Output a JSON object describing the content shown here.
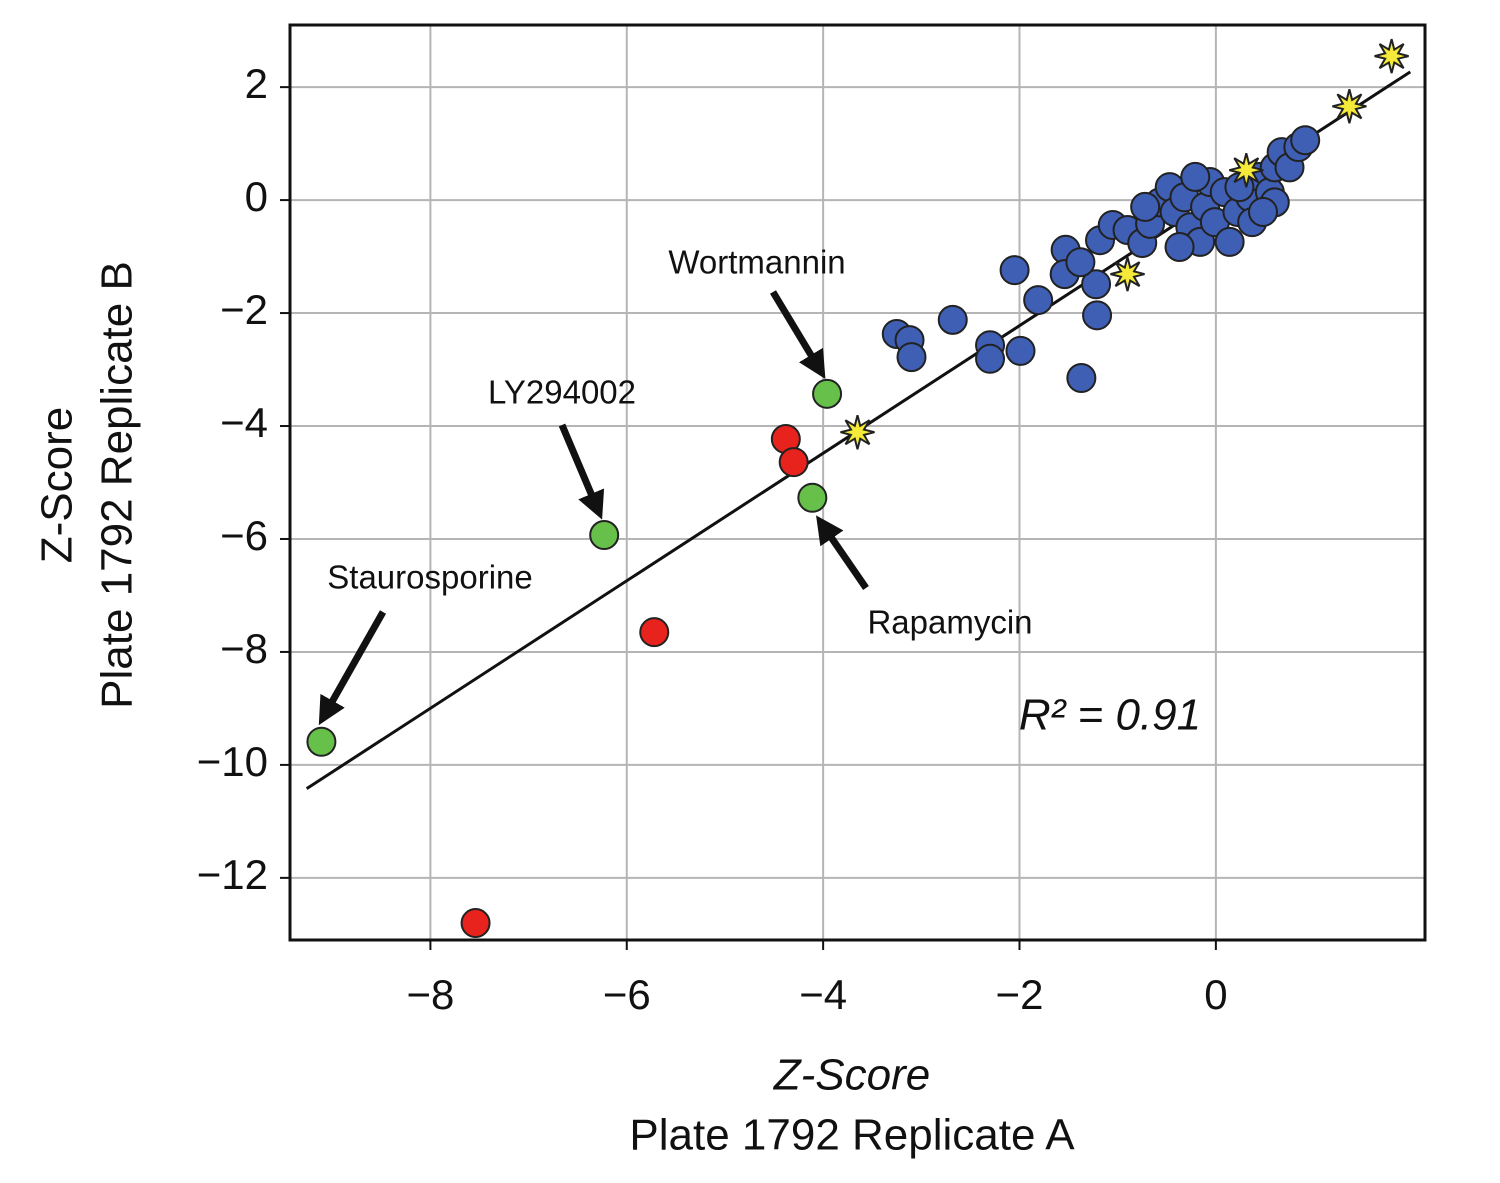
{
  "chart_data": {
    "type": "scatter",
    "xlabel": [
      "Z-Score",
      "Plate 1792 Replicate A"
    ],
    "ylabel": [
      "Z-Score",
      "Plate 1792 Replicate B"
    ],
    "xlim": [
      -9.43,
      2.13
    ],
    "ylim": [
      -13.1,
      3.1
    ],
    "xticks": [
      {
        "value": -8,
        "label": "−8"
      },
      {
        "value": -6,
        "label": "−6"
      },
      {
        "value": -4,
        "label": "−4"
      },
      {
        "value": -2,
        "label": "−2"
      },
      0
    ],
    "yticks": [
      2,
      0,
      {
        "value": -2,
        "label": "−2"
      },
      {
        "value": -4,
        "label": "−4"
      },
      {
        "value": -6,
        "label": "−6"
      },
      {
        "value": -8,
        "label": "−8"
      },
      {
        "value": -10,
        "label": "−10"
      },
      {
        "value": -12,
        "label": "−12"
      }
    ],
    "grid": true,
    "series": [
      {
        "color": "#3f5fb5",
        "marker": "circle",
        "x": [
          -2.05,
          -2.68,
          -3.25,
          -3.12,
          -3.1,
          -2.3,
          -2.3,
          -1.99,
          -1.81,
          -1.37,
          -1.21,
          -1.22,
          -1.53,
          -1.54,
          -1.38,
          -1.18,
          -1.05,
          -0.9,
          -0.75,
          -0.67,
          -0.57,
          -0.47,
          -0.42,
          -0.32,
          -0.26,
          -0.16,
          -0.11,
          -0.06,
          -0.01,
          0.09,
          0.14,
          0.22,
          0.35,
          0.37,
          0.45,
          0.55,
          0.6,
          0.67,
          0.75,
          0.84,
          0.91,
          0.6,
          -0.72,
          -0.37,
          -0.21,
          0.24,
          0.48
        ],
        "y": [
          -1.24,
          -2.12,
          -2.37,
          -2.48,
          -2.78,
          -2.57,
          -2.81,
          -2.67,
          -1.77,
          -3.15,
          -2.04,
          -1.49,
          -0.88,
          -1.31,
          -1.1,
          -0.71,
          -0.44,
          -0.53,
          -0.76,
          -0.42,
          -0.04,
          0.23,
          -0.21,
          0.05,
          -0.48,
          -0.74,
          -0.12,
          0.32,
          -0.39,
          0.14,
          -0.74,
          -0.21,
          0.05,
          -0.39,
          0.41,
          0.14,
          0.58,
          0.85,
          0.58,
          0.94,
          1.06,
          -0.04,
          -0.12,
          -0.83,
          0.41,
          0.23,
          -0.21
        ]
      },
      {
        "color": "#e8221c",
        "marker": "circle",
        "x": [
          -4.38,
          -4.3,
          -5.72,
          -7.54
        ],
        "y": [
          -4.23,
          -4.64,
          -7.65,
          -12.8
        ]
      },
      {
        "color": "#66c04a",
        "marker": "circle",
        "x": [
          -3.96,
          -6.23,
          -4.11,
          -9.11
        ],
        "y": [
          -3.43,
          -5.93,
          -5.27,
          -9.59
        ]
      },
      {
        "color": "#f5ea3a",
        "marker": "star",
        "x": [
          1.79,
          1.36,
          0.31,
          -0.9,
          -3.65
        ],
        "y": [
          2.55,
          1.66,
          0.53,
          -1.31,
          -4.11
        ]
      }
    ],
    "fit_line": {
      "x": [
        -9.26,
        1.98
      ],
      "y": [
        -10.42,
        2.27
      ]
    },
    "annotations": [
      "Wortmannin",
      "LY294002",
      "Staurosporine",
      "Rapamycin",
      "R² = 0.91"
    ]
  }
}
